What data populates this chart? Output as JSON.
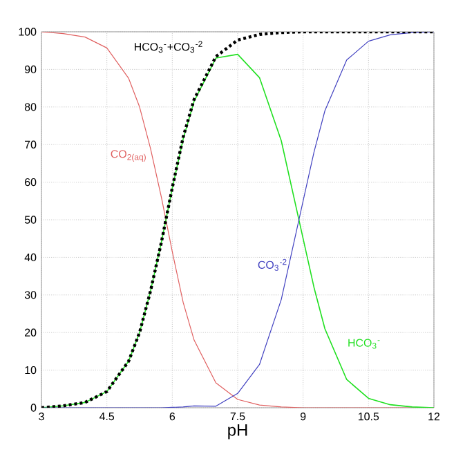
{
  "chart_data": {
    "type": "line",
    "xlabel": "pH",
    "xlim": [
      3,
      12
    ],
    "ylim": [
      0,
      100
    ],
    "xticks": [
      3,
      4.5,
      6,
      7.5,
      9,
      10.5,
      12
    ],
    "yticks": [
      0,
      10,
      20,
      30,
      40,
      50,
      60,
      70,
      80,
      90,
      100
    ],
    "grid": true,
    "marker": "none",
    "x": [
      3,
      3.5,
      4,
      4.5,
      5,
      5.25,
      5.5,
      5.75,
      6,
      6.25,
      6.5,
      7,
      7.5,
      8,
      8.5,
      9,
      9.25,
      9.5,
      10,
      10.5,
      11,
      11.5,
      12
    ],
    "series": [
      {
        "color": "#e06060",
        "line_style": "solid",
        "values": [
          100,
          99.5,
          98.6,
          95.7,
          87.6,
          80,
          69,
          56,
          41.5,
          28,
          18,
          6.6,
          2.2,
          0.7,
          0.2,
          0,
          0,
          0,
          0,
          0,
          0,
          0,
          0
        ]
      },
      {
        "color": "#20e020",
        "line_style": "solid",
        "values": [
          0,
          0.5,
          1.4,
          4.3,
          12.4,
          20,
          31,
          44,
          58.4,
          71.5,
          81.5,
          93,
          94,
          87.8,
          71,
          45,
          32,
          21,
          7.5,
          2.5,
          0.8,
          0.2,
          0
        ]
      },
      {
        "color": "#4040c0",
        "line_style": "solid",
        "values": [
          0,
          0,
          0,
          0,
          0,
          0,
          0,
          0,
          0.1,
          0.2,
          0.5,
          0.4,
          3.8,
          11.5,
          28.8,
          55,
          68,
          79,
          92.5,
          97.5,
          99.2,
          99.8,
          100
        ]
      },
      {
        "color": "#000000",
        "line_style": "dotted",
        "values": [
          0,
          0.5,
          1.4,
          4.3,
          12.4,
          20,
          31,
          44,
          58.5,
          72,
          82,
          93.4,
          97.8,
          99.3,
          99.8,
          100,
          100,
          100,
          100,
          100,
          100,
          100,
          100
        ]
      }
    ],
    "annotations": [
      "CO$_{2(aq)}$",
      "HCO$_{3}$$^{-}$",
      "CO$_{3}$$^{-2}$",
      "HCO$_{3}$$^{-}$+CO$_{3}$$^{-2}$"
    ]
  }
}
